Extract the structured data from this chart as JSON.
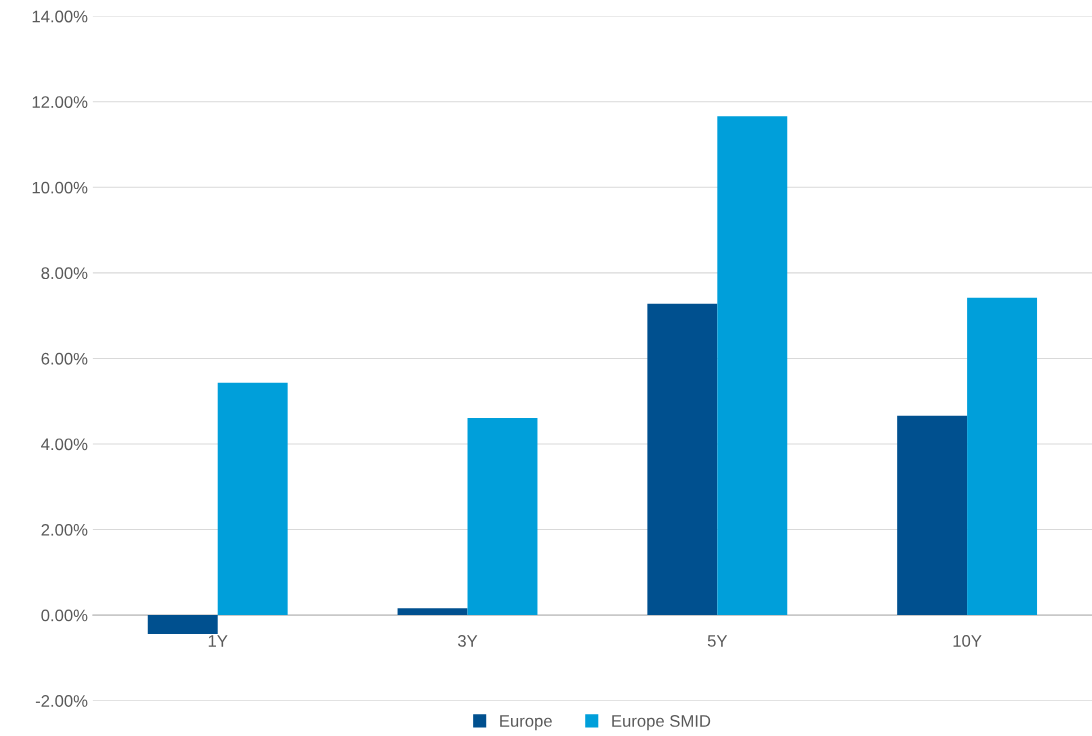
{
  "chart_data": {
    "type": "bar",
    "categories": [
      "1Y",
      "3Y",
      "5Y",
      "10Y"
    ],
    "series": [
      {
        "name": "Europe",
        "color": "#00508f",
        "values": [
          -0.44,
          0.16,
          7.28,
          4.66
        ]
      },
      {
        "name": "Europe SMID",
        "color": "#009fda",
        "values": [
          5.43,
          4.61,
          11.66,
          7.42
        ]
      }
    ],
    "ylim": [
      -2,
      14
    ],
    "yticks": [
      {
        "value": -2,
        "label": "-2.00%"
      },
      {
        "value": 0,
        "label": "0.00%"
      },
      {
        "value": 2,
        "label": "2.00%"
      },
      {
        "value": 4,
        "label": "4.00%"
      },
      {
        "value": 6,
        "label": "6.00%"
      },
      {
        "value": 8,
        "label": "8.00%"
      },
      {
        "value": 10,
        "label": "10.00%"
      },
      {
        "value": 12,
        "label": "12.00%"
      },
      {
        "value": 14,
        "label": "14.00%"
      }
    ],
    "grid": "y",
    "legend": "bottom"
  }
}
